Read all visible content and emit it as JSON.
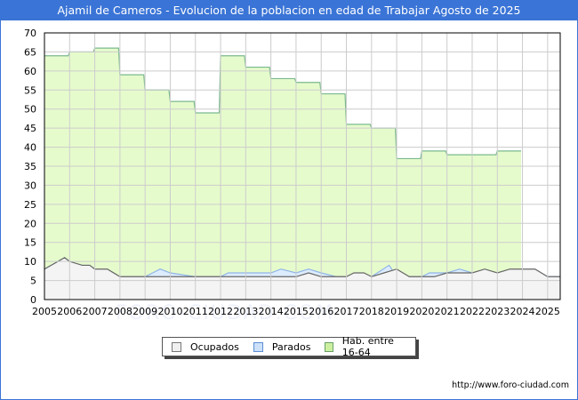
{
  "title": "Ajamil de Cameros - Evolucion de la poblacion en edad de Trabajar Agosto de 2025",
  "footer": "http://www.foro-ciudad.com",
  "watermark": "FORO-CIUDAD.COM",
  "legend": [
    {
      "label": "Ocupados",
      "color": "#f0f0f0",
      "border": "#777777"
    },
    {
      "label": "Parados",
      "color": "#cce0f8",
      "border": "#5b8fd6"
    },
    {
      "label": "Hab. entre 16-64",
      "color": "#ccf0a0",
      "border": "#6aa06a"
    }
  ],
  "colors": {
    "title_bg": "#3a74d6",
    "hab_fill": "#e6fbcc",
    "hab_line": "#7bb98f",
    "parados_fill": "#dcecfc",
    "parados_line": "#8fb4e8",
    "ocupados_fill": "#f4f4f4",
    "ocupados_line": "#666666",
    "grid": "#cccccc"
  },
  "chart_data": {
    "type": "area",
    "title": "Ajamil de Cameros - Evolucion de la poblacion en edad de Trabajar Agosto de 2025",
    "xlabel": "",
    "ylabel": "",
    "ylim": [
      0,
      70
    ],
    "yticks": [
      0,
      5,
      10,
      15,
      20,
      25,
      30,
      35,
      40,
      45,
      50,
      55,
      60,
      65,
      70
    ],
    "xticks": [
      "2005",
      "2006",
      "2007",
      "2008",
      "2009",
      "2010",
      "2011",
      "2012",
      "2013",
      "2014",
      "2015",
      "2016",
      "2017",
      "2018",
      "2019",
      "2020",
      "2021",
      "2022",
      "2023",
      "2024",
      "2025"
    ],
    "grid": true,
    "legend_position": "bottom",
    "series": [
      {
        "name": "Hab. entre 16-64",
        "x": [
          2005,
          2006,
          2007,
          2008,
          2009,
          2010,
          2011,
          2012,
          2013,
          2014,
          2015,
          2016,
          2017,
          2018,
          2019,
          2020,
          2021,
          2022,
          2023
        ],
        "values": [
          64,
          65,
          66,
          59,
          55,
          52,
          49,
          64,
          61,
          58,
          57,
          54,
          46,
          45,
          37,
          39,
          38,
          38,
          39
        ]
      },
      {
        "name": "Parados",
        "x": [
          2005.0,
          2005.8,
          2006.0,
          2006.5,
          2006.8,
          2007.0,
          2008.0,
          2009.0,
          2009.3,
          2009.6,
          2010.0,
          2011.0,
          2012.0,
          2012.3,
          2013.0,
          2014.0,
          2014.4,
          2015.0,
          2015.5,
          2016.0,
          2016.6,
          2017.0,
          2018.0,
          2018.7,
          2019.0,
          2020.0,
          2020.3,
          2021.0,
          2021.5,
          2022.0,
          2023.0,
          2024.0,
          2025.0,
          2025.5
        ],
        "values": [
          8,
          11,
          10,
          9,
          9,
          8,
          6,
          6,
          7,
          8,
          7,
          6,
          6,
          7,
          7,
          7,
          8,
          7,
          8,
          7,
          6,
          6,
          6,
          9,
          6,
          6,
          7,
          7,
          8,
          7,
          7,
          8,
          6,
          6
        ]
      },
      {
        "name": "Ocupados",
        "x": [
          2005.0,
          2005.8,
          2006.0,
          2006.5,
          2006.8,
          2007.0,
          2007.5,
          2008.0,
          2009.0,
          2010.0,
          2011.0,
          2012.0,
          2013.0,
          2014.0,
          2015.0,
          2015.5,
          2016.0,
          2016.5,
          2017.0,
          2017.3,
          2017.7,
          2018.0,
          2018.5,
          2019.0,
          2019.5,
          2020.0,
          2020.5,
          2021.0,
          2021.5,
          2022.0,
          2022.5,
          2023.0,
          2023.5,
          2024.0,
          2024.5,
          2025.0,
          2025.5
        ],
        "values": [
          8,
          11,
          10,
          9,
          9,
          8,
          8,
          6,
          6,
          6,
          6,
          6,
          6,
          6,
          6,
          7,
          6,
          6,
          6,
          7,
          7,
          6,
          7,
          8,
          6,
          6,
          6,
          7,
          7,
          7,
          8,
          7,
          8,
          8,
          8,
          6,
          6
        ]
      }
    ]
  }
}
